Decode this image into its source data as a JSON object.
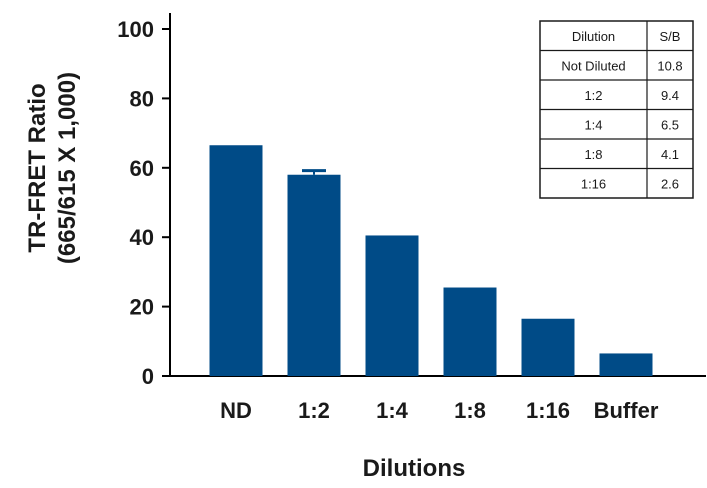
{
  "chart_data": {
    "type": "bar",
    "categories": [
      "ND",
      "1:2",
      "1:4",
      "1:8",
      "1:16",
      "Buffer"
    ],
    "values": [
      66.5,
      58,
      40.5,
      25.5,
      16.5,
      6.5
    ],
    "error": [
      0,
      1.2,
      0,
      0,
      0,
      0
    ],
    "ylim": [
      0,
      100
    ],
    "yticks": [
      0,
      20,
      40,
      60,
      80,
      100
    ],
    "ylabel_line1": "TR-FRET Ratio",
    "ylabel_line2": "(665/615 X 1,000)",
    "xlabel": "Dilutions",
    "bar_color": "#004b87",
    "grid": false,
    "table": {
      "headers": [
        "Dilution",
        "S/B"
      ],
      "rows": [
        [
          "Not Diluted",
          "10.8"
        ],
        [
          "1:2",
          "9.4"
        ],
        [
          "1:4",
          "6.5"
        ],
        [
          "1:8",
          "4.1"
        ],
        [
          "1:16",
          "2.6"
        ]
      ]
    }
  }
}
